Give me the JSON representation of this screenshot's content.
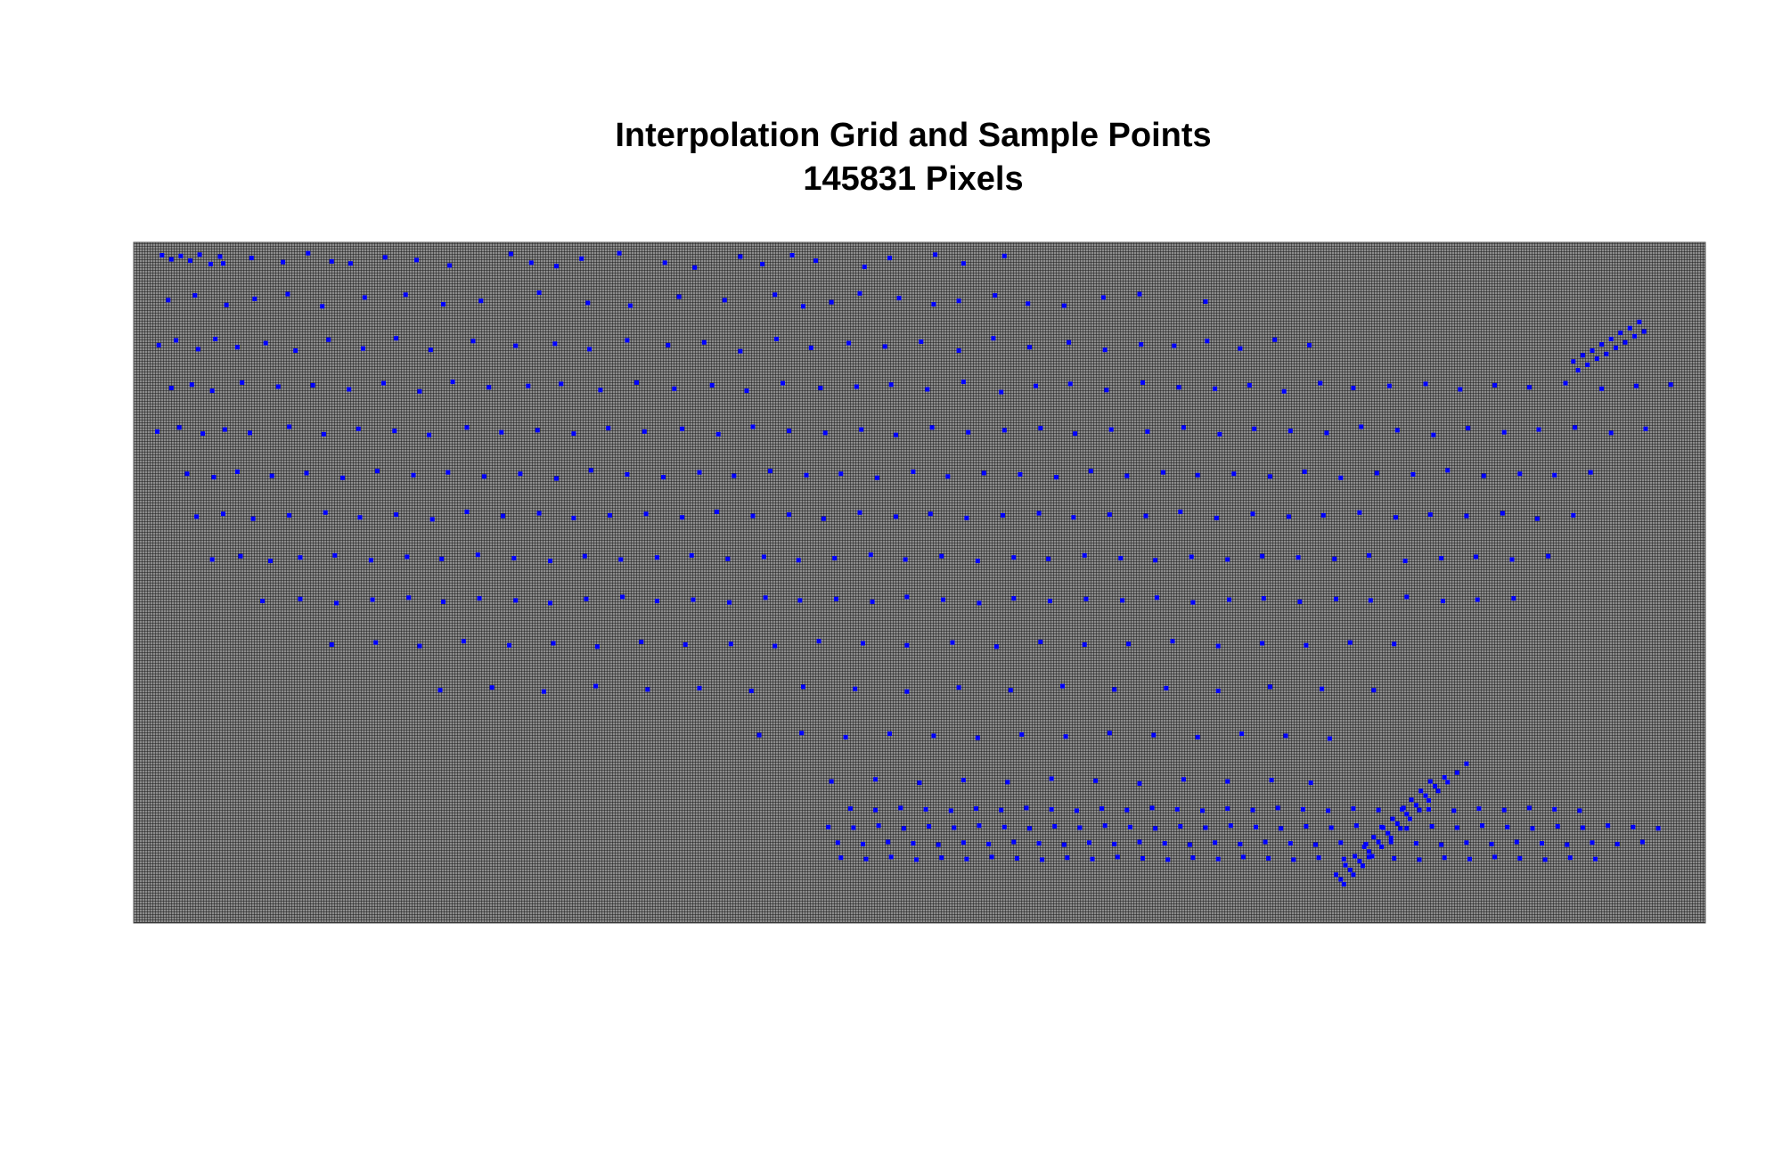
{
  "colors": {
    "background": "#ffffff",
    "grid_background": "#8c8c8c",
    "grid_line": "#1a1a1a",
    "sample_point": "#0000ff"
  },
  "chart_data": {
    "type": "scatter",
    "title": "Interpolation Grid and Sample Points",
    "subtitle": "145831 Pixels",
    "xlabel": "",
    "ylabel": "",
    "axes_visible": false,
    "grid": true,
    "grid_note_value": 145831,
    "xlim": [
      0,
      100
    ],
    "ylim": [
      0,
      100
    ],
    "series": [
      {
        "marker": "square",
        "color": "#0000ff",
        "x": [
          1.8,
          2.4,
          3.0,
          3.6,
          4.2,
          4.9,
          5.5,
          5.7,
          7.5,
          9.5,
          11.1,
          12.6,
          13.8,
          16.0,
          18.0,
          20.1,
          24.0,
          25.3,
          26.9,
          28.5,
          30.9,
          33.8,
          35.7,
          38.6,
          40.0,
          41.9,
          43.4,
          46.5,
          48.1,
          51.0,
          52.8,
          55.4,
          2.2,
          3.9,
          5.9,
          7.7,
          9.8,
          12.0,
          14.7,
          17.3,
          19.7,
          22.1,
          25.8,
          28.9,
          31.6,
          34.7,
          37.6,
          40.8,
          42.6,
          44.4,
          46.2,
          48.7,
          50.9,
          52.5,
          54.8,
          56.9,
          59.2,
          61.7,
          64.0,
          68.2,
          1.6,
          2.7,
          4.1,
          5.2,
          6.6,
          8.4,
          10.3,
          12.4,
          14.6,
          16.7,
          18.9,
          21.6,
          24.3,
          26.8,
          29.0,
          31.4,
          34.0,
          36.3,
          38.6,
          40.9,
          43.1,
          45.5,
          47.8,
          50.1,
          52.5,
          54.7,
          57.0,
          59.5,
          61.8,
          64.1,
          66.2,
          68.3,
          70.4,
          72.6,
          74.8,
          2.4,
          3.7,
          5.0,
          6.9,
          9.2,
          11.4,
          13.7,
          15.9,
          18.2,
          20.3,
          22.6,
          25.1,
          27.2,
          29.7,
          32.0,
          34.4,
          36.8,
          39.0,
          41.3,
          43.7,
          46.0,
          48.2,
          50.5,
          52.8,
          55.2,
          57.4,
          59.6,
          61.9,
          64.2,
          66.5,
          68.8,
          71.0,
          73.2,
          75.5,
          77.6,
          79.9,
          82.2,
          84.4,
          86.6,
          88.8,
          91.1,
          93.4,
          95.6,
          97.8,
          1.5,
          2.9,
          4.4,
          5.8,
          7.4,
          9.9,
          12.1,
          14.3,
          16.6,
          18.8,
          21.2,
          23.4,
          25.7,
          28.0,
          30.2,
          32.5,
          34.9,
          37.2,
          39.4,
          41.7,
          44.0,
          46.3,
          48.5,
          50.8,
          53.1,
          55.4,
          57.7,
          59.9,
          62.2,
          64.5,
          66.8,
          69.1,
          71.3,
          73.6,
          75.9,
          78.1,
          80.4,
          82.7,
          84.9,
          87.2,
          89.4,
          91.7,
          94.0,
          96.2,
          3.4,
          5.1,
          6.6,
          8.8,
          11.0,
          13.3,
          15.5,
          17.8,
          20.0,
          22.3,
          24.6,
          26.9,
          29.1,
          31.4,
          33.7,
          36.0,
          38.2,
          40.5,
          42.8,
          45.0,
          47.3,
          49.6,
          51.8,
          54.1,
          56.4,
          58.7,
          60.9,
          63.2,
          65.5,
          67.7,
          70.0,
          72.3,
          74.5,
          76.8,
          79.1,
          81.4,
          83.6,
          85.9,
          88.2,
          90.4,
          92.7,
          4.0,
          5.7,
          7.6,
          9.9,
          12.2,
          14.4,
          16.7,
          19.0,
          21.2,
          23.5,
          25.8,
          28.0,
          30.3,
          32.6,
          34.9,
          37.1,
          39.4,
          41.7,
          43.9,
          46.2,
          48.5,
          50.7,
          53.0,
          55.3,
          57.6,
          59.8,
          62.1,
          64.4,
          66.6,
          68.9,
          71.2,
          73.5,
          75.7,
          78.0,
          80.3,
          82.5,
          84.8,
          87.1,
          89.3,
          91.6,
          5.0,
          6.8,
          8.7,
          10.6,
          12.8,
          15.1,
          17.4,
          19.6,
          21.9,
          24.2,
          26.5,
          28.7,
          31.0,
          33.3,
          35.5,
          37.8,
          40.1,
          42.3,
          44.6,
          46.9,
          49.1,
          51.4,
          53.7,
          56.0,
          58.2,
          60.5,
          62.8,
          65.0,
          67.3,
          69.6,
          71.8,
          74.1,
          76.4,
          78.6,
          80.9,
          83.2,
          85.4,
          87.7,
          90.0,
          8.2,
          10.6,
          12.9,
          15.2,
          17.5,
          19.7,
          22.0,
          24.3,
          26.5,
          28.8,
          31.1,
          33.3,
          35.6,
          37.9,
          40.2,
          42.4,
          44.7,
          47.0,
          49.2,
          51.5,
          53.8,
          56.0,
          58.3,
          60.6,
          62.9,
          65.1,
          67.4,
          69.7,
          71.9,
          74.2,
          76.5,
          78.7,
          81.0,
          83.3,
          85.5,
          87.8,
          12.6,
          15.4,
          18.2,
          21.0,
          23.9,
          26.7,
          29.5,
          32.3,
          35.1,
          38.0,
          40.8,
          43.6,
          46.4,
          49.2,
          52.1,
          54.9,
          57.7,
          60.5,
          63.3,
          66.1,
          69.0,
          71.8,
          74.6,
          77.4,
          80.2,
          19.5,
          22.8,
          26.1,
          29.4,
          32.7,
          36.0,
          39.3,
          42.6,
          45.9,
          49.2,
          52.5,
          55.8,
          59.1,
          62.4,
          65.7,
          69.0,
          72.3,
          75.6,
          78.9,
          39.8,
          42.5,
          45.3,
          48.1,
          50.9,
          53.7,
          56.5,
          59.3,
          62.1,
          64.9,
          67.7,
          70.5,
          73.3,
          76.1,
          44.4,
          47.2,
          50.0,
          52.8,
          55.6,
          58.4,
          61.2,
          64.0,
          66.8,
          69.6,
          72.4,
          74.9,
          44.2,
          45.8,
          47.4,
          49.0,
          50.6,
          52.2,
          53.8,
          55.4,
          57.0,
          58.6,
          60.2,
          61.8,
          63.4,
          65.0,
          66.6,
          68.2,
          69.8,
          71.4,
          73.0,
          74.6,
          76.2,
          77.8,
          79.4,
          81.0,
          82.6,
          84.2,
          85.8,
          87.4,
          89.0,
          90.6,
          92.2,
          93.8,
          95.4,
          97.0,
          45.0,
          46.6,
          48.2,
          49.8,
          51.4,
          53.0,
          54.6,
          56.2,
          57.8,
          59.4,
          61.0,
          62.6,
          64.2,
          65.8,
          67.4,
          69.0,
          70.6,
          72.2,
          73.8,
          75.4,
          77.0,
          78.6,
          80.2,
          81.8,
          83.4,
          85.0,
          86.6,
          88.2,
          89.8,
          91.4,
          93.0,
          45.6,
          47.2,
          48.8,
          50.4,
          52.0,
          53.6,
          55.2,
          56.8,
          58.4,
          60.0,
          61.6,
          63.2,
          64.8,
          66.4,
          68.0,
          69.6,
          71.2,
          72.8,
          74.4,
          76.0,
          77.6,
          79.2,
          80.8,
          82.4,
          84.0,
          85.6,
          87.2,
          88.8,
          90.4,
          92.0,
          44.8,
          46.4,
          48.0,
          49.6,
          51.2,
          52.8,
          54.4,
          56.0,
          57.6,
          59.2,
          60.8,
          62.4,
          64.0,
          65.6,
          67.2,
          68.8,
          70.4,
          72.0,
          73.6,
          75.2,
          76.8,
          78.4,
          80.0,
          81.6,
          83.2,
          84.8,
          86.4,
          88.0,
          89.6,
          91.2,
          92.8,
          94.4,
          96.0,
          76.5,
          77.1,
          77.7,
          78.3,
          78.9,
          79.5,
          80.1,
          80.7,
          81.3,
          81.9,
          82.5,
          76.8,
          77.4,
          78.0,
          78.6,
          79.2,
          79.8,
          80.4,
          81.0,
          81.6,
          82.2,
          82.8,
          83.4,
          77.0,
          77.6,
          78.2,
          78.8,
          79.4,
          80.0,
          80.6,
          81.2,
          81.8,
          82.4,
          83.0,
          83.6,
          84.2,
          84.8,
          91.6,
          92.2,
          92.8,
          93.4,
          94.0,
          94.6,
          95.2,
          95.8,
          91.9,
          92.5,
          93.1,
          93.7,
          94.3,
          94.9,
          95.5,
          96.1
        ],
        "y": [
          98.1,
          97.5,
          98.0,
          97.3,
          98.2,
          96.8,
          97.9,
          96.9,
          97.7,
          97.1,
          98.4,
          97.2,
          96.9,
          97.8,
          97.4,
          96.6,
          98.3,
          97.0,
          96.5,
          97.6,
          98.4,
          97.0,
          96.3,
          97.9,
          96.8,
          98.1,
          97.3,
          96.4,
          97.7,
          98.2,
          96.9,
          98.0,
          91.5,
          92.2,
          90.8,
          91.7,
          92.4,
          90.6,
          91.9,
          92.3,
          90.9,
          91.4,
          92.6,
          91.1,
          90.7,
          92.0,
          91.5,
          92.3,
          90.6,
          91.2,
          92.5,
          91.8,
          90.9,
          91.4,
          92.2,
          91.0,
          90.7,
          91.9,
          92.4,
          91.3,
          84.9,
          85.6,
          84.3,
          85.8,
          84.6,
          85.2,
          84.1,
          85.7,
          84.4,
          85.9,
          84.2,
          85.5,
          84.8,
          85.1,
          84.3,
          85.6,
          84.9,
          85.3,
          84.0,
          85.8,
          84.5,
          85.2,
          84.7,
          85.4,
          84.1,
          85.9,
          84.6,
          85.3,
          84.2,
          85.0,
          84.8,
          85.5,
          84.4,
          85.7,
          84.9,
          78.6,
          79.1,
          78.2,
          79.4,
          78.8,
          79.0,
          78.4,
          79.3,
          78.1,
          79.5,
          78.7,
          78.9,
          79.2,
          78.3,
          79.4,
          78.5,
          79.0,
          78.2,
          79.3,
          78.6,
          78.8,
          79.1,
          78.4,
          79.5,
          78.0,
          78.9,
          79.2,
          78.3,
          79.4,
          78.7,
          78.5,
          79.0,
          78.1,
          79.3,
          78.6,
          78.9,
          79.2,
          78.4,
          79.0,
          78.7,
          79.3,
          78.5,
          78.9,
          79.1,
          72.2,
          72.8,
          71.9,
          72.5,
          72.0,
          72.9,
          71.8,
          72.6,
          72.3,
          71.7,
          72.8,
          72.1,
          72.4,
          71.9,
          72.7,
          72.2,
          72.6,
          71.8,
          72.9,
          72.3,
          72.0,
          72.5,
          71.7,
          72.8,
          72.1,
          72.4,
          72.7,
          71.9,
          72.5,
          72.2,
          72.8,
          71.8,
          72.6,
          72.3,
          72.0,
          72.9,
          72.4,
          71.7,
          72.7,
          72.1,
          72.5,
          72.8,
          72.0,
          72.6,
          66.0,
          65.5,
          66.3,
          65.7,
          66.1,
          65.4,
          66.4,
          65.8,
          66.2,
          65.6,
          66.0,
          65.3,
          66.5,
          65.9,
          65.5,
          66.2,
          65.7,
          66.4,
          65.8,
          66.0,
          65.4,
          66.3,
          65.6,
          66.1,
          65.9,
          65.5,
          66.4,
          65.7,
          66.2,
          65.8,
          66.0,
          65.6,
          66.3,
          65.4,
          66.1,
          65.9,
          66.5,
          65.7,
          66.0,
          65.8,
          66.2,
          59.7,
          60.1,
          59.4,
          59.9,
          60.3,
          59.6,
          60.0,
          59.3,
          60.4,
          59.8,
          60.2,
          59.5,
          59.9,
          60.1,
          59.6,
          60.4,
          59.8,
          60.0,
          59.4,
          60.3,
          59.7,
          60.1,
          59.5,
          59.9,
          60.2,
          59.6,
          60.0,
          59.8,
          60.4,
          59.5,
          60.1,
          59.7,
          59.9,
          60.3,
          59.6,
          60.0,
          59.8,
          60.2,
          59.4,
          59.9,
          53.4,
          53.9,
          53.2,
          53.7,
          54.0,
          53.3,
          53.8,
          53.5,
          54.1,
          53.6,
          53.2,
          53.9,
          53.4,
          53.7,
          54.0,
          53.5,
          53.8,
          53.3,
          53.6,
          54.1,
          53.4,
          53.9,
          53.2,
          53.7,
          53.5,
          54.0,
          53.6,
          53.3,
          53.8,
          53.4,
          53.9,
          53.7,
          53.5,
          54.0,
          53.2,
          53.6,
          53.8,
          53.4,
          53.9,
          47.3,
          47.6,
          47.0,
          47.5,
          47.8,
          47.2,
          47.7,
          47.4,
          47.0,
          47.6,
          47.9,
          47.3,
          47.5,
          47.1,
          47.8,
          47.4,
          47.6,
          47.2,
          47.9,
          47.5,
          47.0,
          47.7,
          47.3,
          47.6,
          47.4,
          47.8,
          47.1,
          47.5,
          47.7,
          47.2,
          47.6,
          47.4,
          47.9,
          47.3,
          47.5,
          47.7,
          40.9,
          41.2,
          40.7,
          41.4,
          40.8,
          41.1,
          40.6,
          41.3,
          40.9,
          41.0,
          40.7,
          41.4,
          41.1,
          40.8,
          41.2,
          40.6,
          41.3,
          40.9,
          41.0,
          41.4,
          40.7,
          41.1,
          40.8,
          41.2,
          41.0,
          34.2,
          34.6,
          34.0,
          34.8,
          34.3,
          34.5,
          34.1,
          34.7,
          34.4,
          34.0,
          34.6,
          34.2,
          34.8,
          34.3,
          34.5,
          34.1,
          34.7,
          34.4,
          34.2,
          27.6,
          27.9,
          27.3,
          27.8,
          27.5,
          27.2,
          27.7,
          27.4,
          27.9,
          27.6,
          27.3,
          27.8,
          27.5,
          27.1,
          20.8,
          21.1,
          20.6,
          21.0,
          20.7,
          21.2,
          20.9,
          20.5,
          21.1,
          20.8,
          21.0,
          20.6,
          14.1,
          14.0,
          14.3,
          13.9,
          14.2,
          14.0,
          14.3,
          14.1,
          13.9,
          14.2,
          14.0,
          14.3,
          14.1,
          13.9,
          14.2,
          14.0,
          14.3,
          14.1,
          13.9,
          14.2,
          14.0,
          14.3,
          14.1,
          13.9,
          14.2,
          14.0,
          14.3,
          14.1,
          13.9,
          14.2,
          14.0,
          14.3,
          14.1,
          13.9,
          9.6,
          9.4,
          9.7,
          9.3,
          9.6,
          9.4,
          9.7,
          9.5,
          9.3,
          9.6,
          9.4,
          9.7,
          9.5,
          9.3,
          9.6,
          9.4,
          9.7,
          9.5,
          9.3,
          9.6,
          9.4,
          9.7,
          9.5,
          9.3,
          9.6,
          9.4,
          9.7,
          9.5,
          9.3,
          9.6,
          9.4,
          16.8,
          16.6,
          16.9,
          16.7,
          16.5,
          16.8,
          16.6,
          16.9,
          16.7,
          16.5,
          16.8,
          16.6,
          16.9,
          16.7,
          16.5,
          16.8,
          16.6,
          16.9,
          16.7,
          16.5,
          16.8,
          16.6,
          16.9,
          16.7,
          16.5,
          16.8,
          16.6,
          16.9,
          16.7,
          16.5,
          11.8,
          11.6,
          11.9,
          11.7,
          11.5,
          11.8,
          11.6,
          11.9,
          11.7,
          11.5,
          11.8,
          11.6,
          11.9,
          11.7,
          11.5,
          11.8,
          11.6,
          11.9,
          11.7,
          11.5,
          11.8,
          11.6,
          11.9,
          11.7,
          11.5,
          11.8,
          11.6,
          11.9,
          11.7,
          11.5,
          11.8,
          11.6,
          11.9,
          7.1,
          8.5,
          9.8,
          11.2,
          12.6,
          14.0,
          15.3,
          16.7,
          18.1,
          19.4,
          20.8,
          6.4,
          7.8,
          9.1,
          10.5,
          11.9,
          13.2,
          14.6,
          16.0,
          17.3,
          18.7,
          20.1,
          21.4,
          5.7,
          7.1,
          8.4,
          9.8,
          11.2,
          12.5,
          13.9,
          15.3,
          16.6,
          18.0,
          19.4,
          20.7,
          22.1,
          23.4,
          82.5,
          83.4,
          84.1,
          85.0,
          85.8,
          86.7,
          87.4,
          88.3,
          81.2,
          82.0,
          82.9,
          83.6,
          84.5,
          85.3,
          86.2,
          86.9
        ]
      }
    ]
  }
}
